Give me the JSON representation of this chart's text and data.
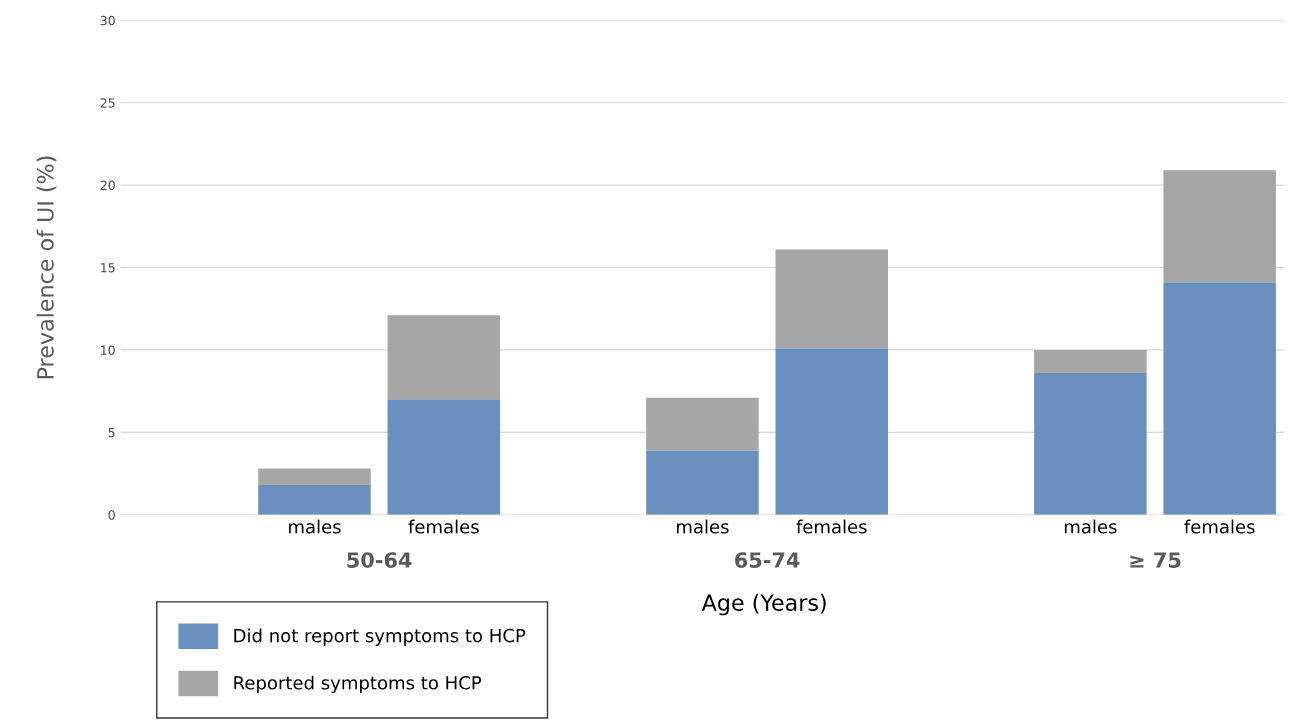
{
  "chart_data": {
    "type": "bar",
    "stacked": true,
    "categories": [
      null,
      "males",
      "females",
      null,
      "males",
      "females",
      null,
      "males",
      "females"
    ],
    "series": [
      {
        "name": "Did not report symptoms to HCP",
        "color": "#6a90bf",
        "values": [
          null,
          1.8,
          7.0,
          null,
          3.9,
          10.1,
          null,
          8.6,
          14.1
        ]
      },
      {
        "name": "Reported symptoms to HCP",
        "color": "#a6a6a6",
        "values": [
          null,
          1.0,
          5.1,
          null,
          3.2,
          6.0,
          null,
          1.4,
          6.8
        ]
      }
    ],
    "annotations": [
      "50-64",
      "65-74",
      "≥ 75"
    ],
    "xlabel": "Age (Years)",
    "ylabel": "Prevalence of UI (%)",
    "ylim": [
      0,
      30
    ],
    "yticks": [
      0,
      5,
      10,
      15,
      20,
      25,
      30
    ],
    "grid": "y",
    "legend": "bottom left"
  }
}
